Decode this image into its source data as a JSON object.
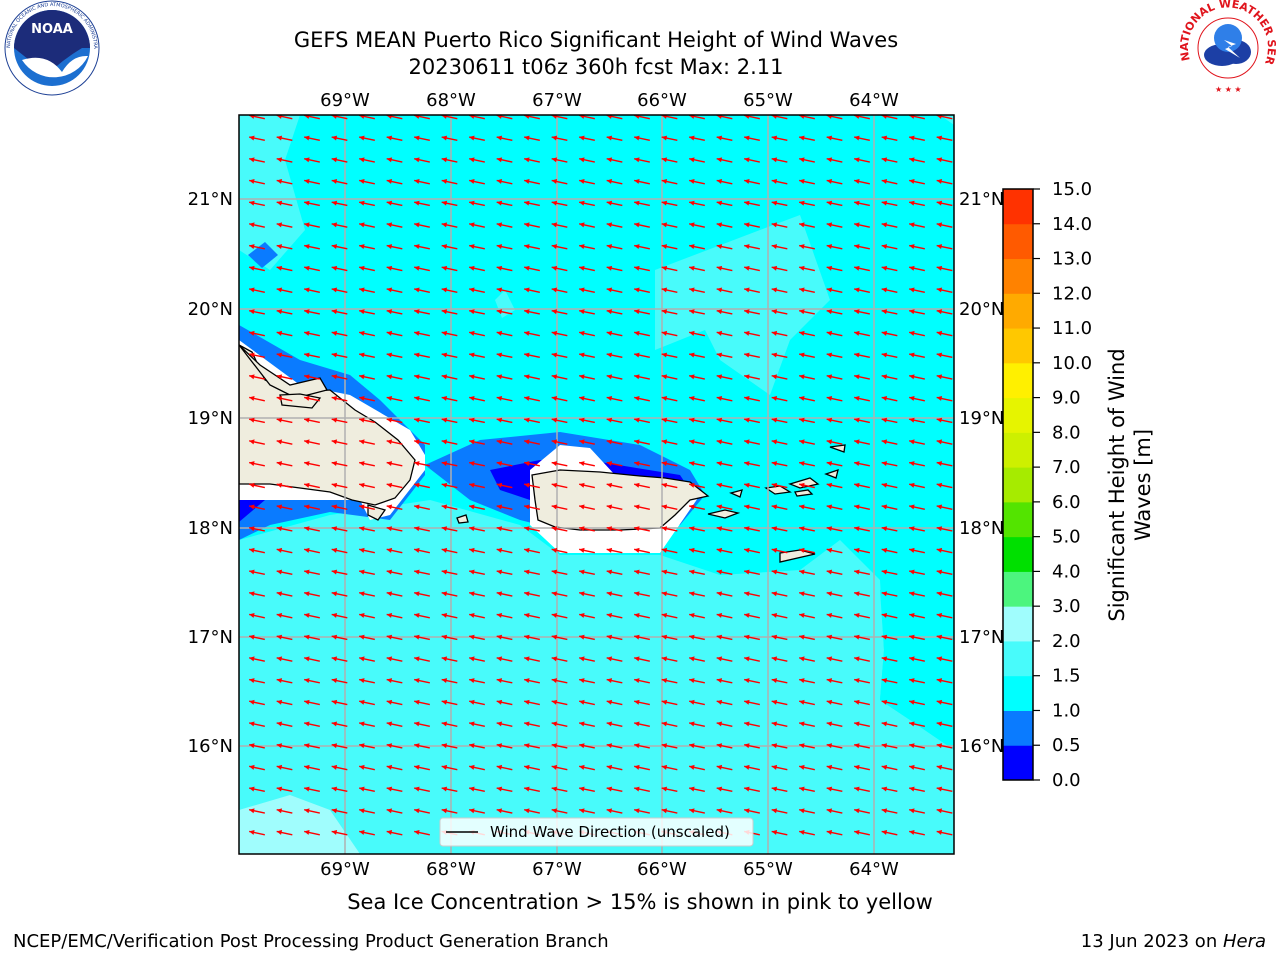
{
  "title_line1": "GEFS MEAN Puerto Rico Significant Height of Wind Waves",
  "title_line2": "20230611 t06z 360h fcst   Max: 2.11",
  "sea_ice_note": "Sea Ice Concentration > 15% is shown in pink to yellow",
  "footer_left": "NCEP/EMC/Verification Post Processing Product Generation Branch",
  "footer_date": "13 Jun 2023 on ",
  "footer_host": "Hera",
  "logos": {
    "noaa": {
      "label": "NOAA",
      "ring_text": "NATIONAL OCEANIC AND ATMOSPHERIC ADMINISTRATION · U.S. DEPARTMENT OF COMMERCE"
    },
    "nws": {
      "ring_text": "NATIONAL WEATHER SERVICE"
    }
  },
  "map": {
    "lon_labels": [
      "69°W",
      "68°W",
      "67°W",
      "66°W",
      "65°W",
      "64°W"
    ],
    "lat_labels": [
      "21°N",
      "20°N",
      "19°N",
      "18°N",
      "17°N",
      "16°N"
    ],
    "legend_label": "Wind Wave Direction (unscaled)",
    "arrow_color": "#ff0000",
    "land_color": "#efedde"
  },
  "colorbar": {
    "label_line1": "Significant Height of Wind",
    "label_line2": "Waves [m]",
    "ticks": [
      "0.0",
      "0.5",
      "1.0",
      "1.5",
      "2.0",
      "3.0",
      "4.0",
      "5.0",
      "6.0",
      "7.0",
      "8.0",
      "9.0",
      "10.0",
      "11.0",
      "12.0",
      "13.0",
      "14.0",
      "15.0"
    ],
    "colors": [
      "#0000ff",
      "#0a7bff",
      "#00ffff",
      "#48fbfb",
      "#a0fdfd",
      "#4cf57e",
      "#00e000",
      "#53e400",
      "#a6eb00",
      "#cdf000",
      "#e6f400",
      "#fff000",
      "#ffc800",
      "#ffaa00",
      "#ff8200",
      "#ff5a00",
      "#ff3200",
      "#ff0000"
    ]
  }
}
